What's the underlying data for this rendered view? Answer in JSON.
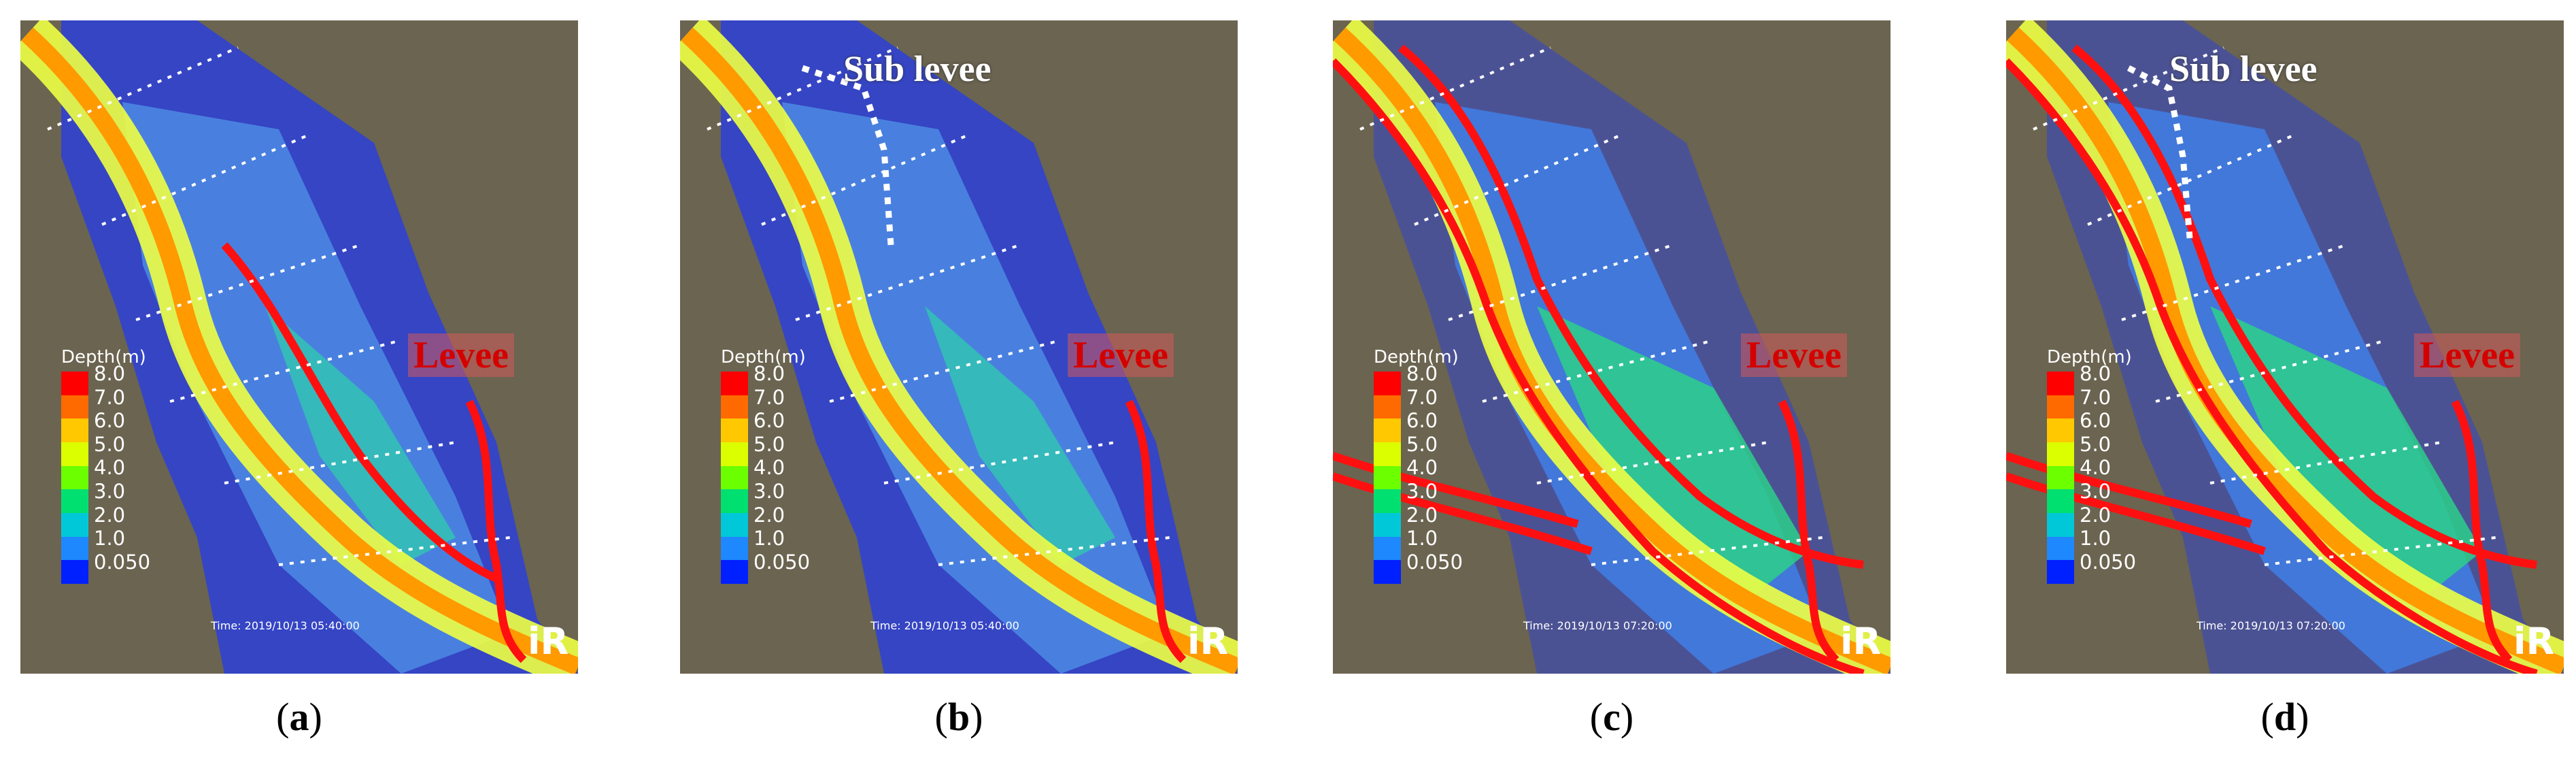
{
  "legend": {
    "title": "Depth(m)",
    "ticks": [
      "8.0",
      "7.0",
      "6.0",
      "5.0",
      "4.0",
      "3.0",
      "2.0",
      "1.0",
      "0.050"
    ],
    "colors": [
      "#ff0000",
      "#ff6a00",
      "#ffc800",
      "#dcff00",
      "#6cff00",
      "#00e070",
      "#00c8d8",
      "#1e88ff",
      "#0020ff"
    ]
  },
  "panels": [
    {
      "caption_letter": "a",
      "levee_label": "Levee",
      "sub_levee_label": null,
      "time": "Time: 2019/10/13 05:40:00",
      "logo": "iRIC"
    },
    {
      "caption_letter": "b",
      "levee_label": "Levee",
      "sub_levee_label": "Sub levee",
      "time": "Time: 2019/10/13 05:40:00",
      "logo": "iRIC"
    },
    {
      "caption_letter": "c",
      "levee_label": "Levee",
      "sub_levee_label": null,
      "time": "Time: 2019/10/13 07:20:00",
      "logo": "iRIC"
    },
    {
      "caption_letter": "d",
      "levee_label": "Levee",
      "sub_levee_label": "Sub levee",
      "time": "Time: 2019/10/13 07:20:00",
      "logo": "iRIC"
    }
  ]
}
